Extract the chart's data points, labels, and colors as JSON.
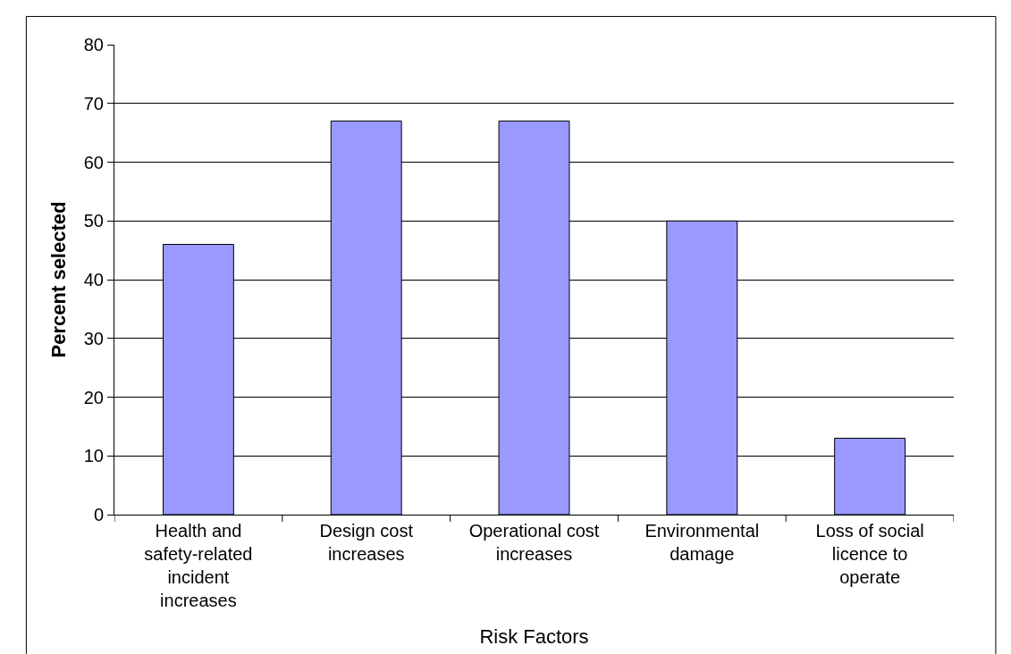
{
  "chart_data": {
    "type": "bar",
    "xlabel": "Risk Factors",
    "ylabel": "Percent selected",
    "categories": [
      "Health and safety-related incident increases",
      "Design cost increases",
      "Operational cost increases",
      "Environmental damage",
      "Loss of social licence to operate"
    ],
    "values": [
      46,
      67,
      67,
      50,
      13
    ],
    "color": "#9999ff",
    "ylim": [
      0,
      80
    ],
    "yticks": [
      0,
      10,
      20,
      30,
      40,
      50,
      60,
      70,
      80
    ],
    "grid": "y"
  }
}
